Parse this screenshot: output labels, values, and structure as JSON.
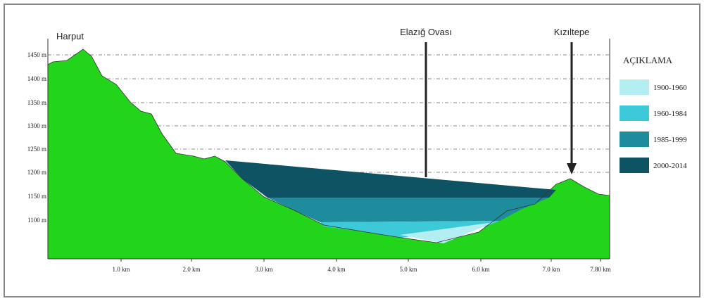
{
  "places": [
    "Harput",
    "Elazığ Ovası",
    "Kızıltepe"
  ],
  "y_axis": {
    "labels": [
      "1450 m",
      "1400 m",
      "1350 m",
      "1300 m",
      "1250 m",
      "1200 m",
      "1150 m",
      "1100 m"
    ]
  },
  "x_axis": {
    "labels": [
      "1.0 km",
      "2.0 km",
      "3.0 km",
      "4.0 km",
      "5.0 km",
      "6.0 km",
      "7.0 km",
      "7.80 km"
    ]
  },
  "legend": {
    "title": "AÇIKLAMA",
    "items": [
      "1900-1960",
      "1960-1984",
      "1985-1999",
      "2000-2014"
    ]
  }
}
